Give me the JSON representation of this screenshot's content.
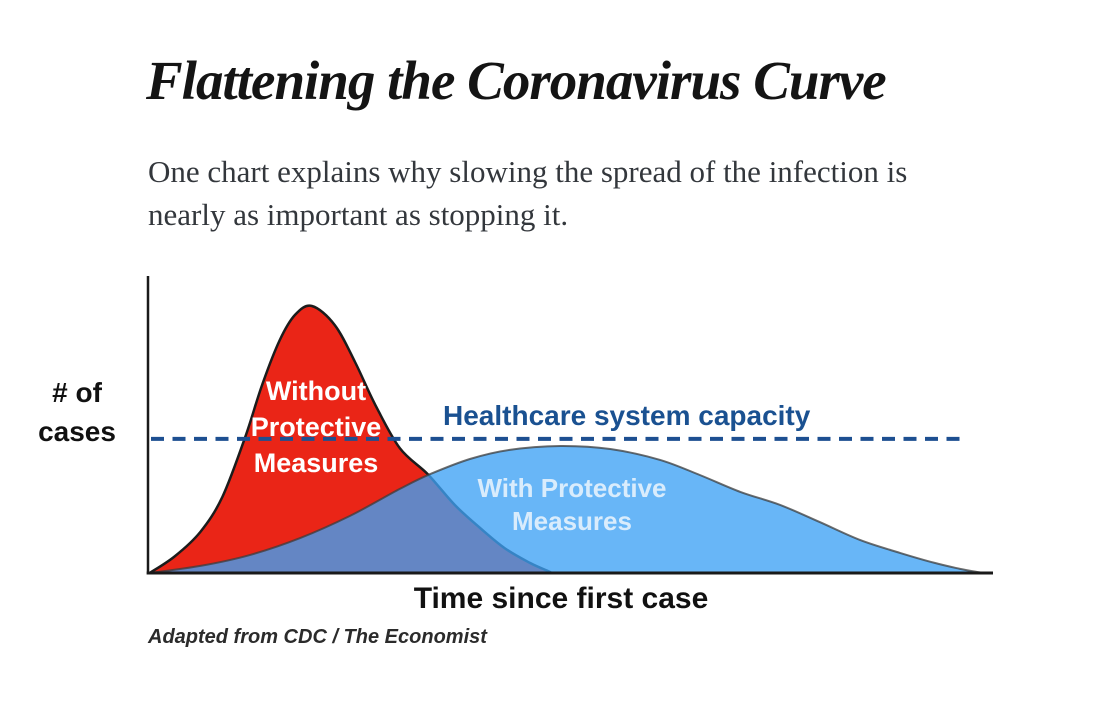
{
  "page": {
    "title": "Flattening the Coronavirus Curve",
    "subtitle_lines": [
      "One chart explains why slowing the spread of the infection is",
      "nearly as important as stopping it."
    ],
    "attribution": "Adapted from CDC / The Economist"
  },
  "colors": {
    "title_text": "#141414",
    "subtitle_text": "#33373c",
    "ylabel_text": "#111111",
    "red_label_text": "#ffffff",
    "capacity_text": "#1a5191",
    "capacity_line": "#1d4f91",
    "blue_label_text": "#d9ecfc",
    "xlabel_text": "#111111",
    "attribution_text": "#2b2b2b",
    "axis": "#1a1a1a"
  },
  "chart_data": {
    "type": "area",
    "title": "",
    "xlabel": "Time since first case",
    "ylabel": "# of cases",
    "ylabel_lines": [
      "# of",
      "cases"
    ],
    "axes": {
      "numeric_ticks": false,
      "x_range_pct": [
        0,
        100
      ],
      "y_range_pct": [
        0,
        100
      ],
      "grid": false
    },
    "capacity_line": {
      "label": "Healthcare system capacity",
      "y_pct": 45.3,
      "style": "dashed"
    },
    "series": [
      {
        "name": "Without Protective Measures",
        "label_lines": [
          "Without",
          "Protective",
          "Measures"
        ],
        "fill": "#ea2517",
        "stroke": "#1c1c1c",
        "stroke_width": 2.5,
        "points_pct": [
          [
            0.2,
            0
          ],
          [
            3.2,
            5.7
          ],
          [
            6.2,
            13.9
          ],
          [
            8.8,
            25.7
          ],
          [
            11.5,
            45.9
          ],
          [
            13.5,
            63.5
          ],
          [
            15.6,
            78.7
          ],
          [
            17.4,
            87.2
          ],
          [
            19.4,
            90.2
          ],
          [
            22.1,
            83.8
          ],
          [
            24.5,
            71.3
          ],
          [
            26.9,
            56.8
          ],
          [
            29.8,
            42.2
          ],
          [
            33.1,
            33.4
          ],
          [
            36.3,
            23.0
          ],
          [
            39.3,
            15.2
          ],
          [
            42.2,
            8.4
          ],
          [
            45.2,
            3.4
          ],
          [
            47.3,
            0.7
          ],
          [
            47.8,
            0
          ]
        ]
      },
      {
        "name": "With Protective Measures",
        "label_lines": [
          "With Protective",
          "Measures"
        ],
        "fill": "rgba(62,162,245,0.78)",
        "stroke": "rgba(60,60,60,0.75)",
        "stroke_width": 2,
        "points_pct": [
          [
            0.2,
            0
          ],
          [
            6.2,
            2.4
          ],
          [
            12.1,
            6.1
          ],
          [
            18.0,
            11.8
          ],
          [
            23.9,
            19.3
          ],
          [
            29.8,
            28.4
          ],
          [
            33.4,
            33.4
          ],
          [
            38.1,
            38.5
          ],
          [
            42.8,
            41.6
          ],
          [
            48.8,
            42.9
          ],
          [
            54.7,
            41.9
          ],
          [
            60.6,
            38.2
          ],
          [
            65.3,
            33.1
          ],
          [
            70.1,
            27.4
          ],
          [
            74.8,
            23.0
          ],
          [
            79.5,
            17.2
          ],
          [
            84.3,
            11.1
          ],
          [
            89.0,
            6.8
          ],
          [
            93.1,
            3.4
          ],
          [
            96.1,
            1.4
          ],
          [
            98.2,
            0.3
          ],
          [
            99.1,
            0
          ]
        ]
      }
    ]
  }
}
